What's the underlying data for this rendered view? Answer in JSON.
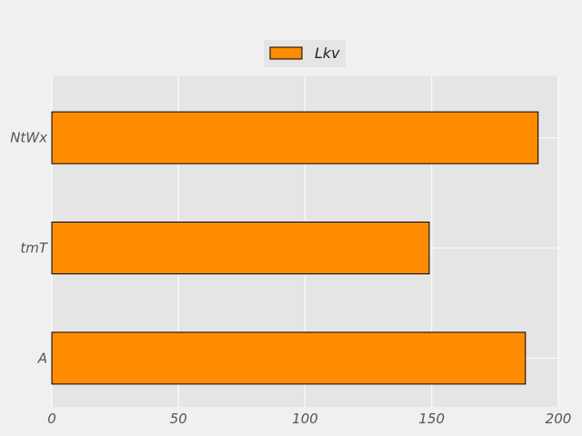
{
  "chart_data": {
    "type": "bar",
    "orientation": "horizontal",
    "categories": [
      "A",
      "tmT",
      "NtWx"
    ],
    "series": [
      {
        "name": "Lkv",
        "values": [
          187,
          149,
          192
        ]
      }
    ],
    "xlim": [
      0,
      200
    ],
    "xticks": [
      0,
      50,
      100,
      150,
      200
    ],
    "xlabel": "",
    "ylabel": "",
    "title": "",
    "grid": true,
    "legend_position": "top-center"
  },
  "colors": {
    "bar_fill": "#ff8c00",
    "bar_stroke": "#000000",
    "plot_background": "#e5e5e5",
    "grid": "#ffffff"
  }
}
